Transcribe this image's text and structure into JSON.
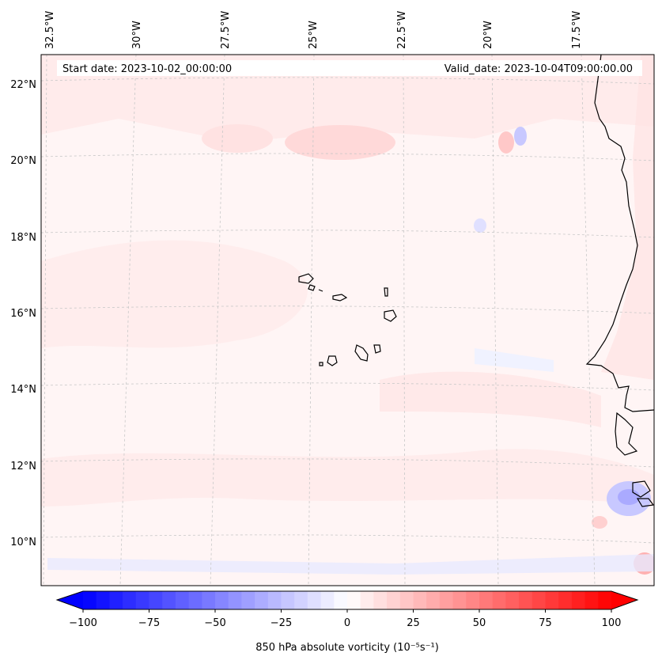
{
  "header": {
    "start_date": "Start date: 2023-10-02_00:00:00",
    "valid_date": "Valid_date: 2023-10-04T09:00:00.00"
  },
  "map": {
    "lon_labels": [
      "32.5°W",
      "30°W",
      "27.5°W",
      "25°W",
      "22.5°W",
      "20°W",
      "17.5°W"
    ],
    "lat_labels": [
      "22°N",
      "20°N",
      "18°N",
      "16°N",
      "14°N",
      "12°N",
      "10°N"
    ]
  },
  "colorbar": {
    "ticks": [
      "−100",
      "−75",
      "−50",
      "−25",
      "0",
      "25",
      "50",
      "75",
      "100"
    ],
    "min": -100,
    "max": 100,
    "label": "850 hPa absolute vorticity (10⁻⁵s⁻¹)"
  },
  "colors": {
    "negative": "#0000ff",
    "neutral": "#ffffff",
    "positive": "#ff0000",
    "coastline": "#000000",
    "gridline": "#c8c8c8"
  }
}
